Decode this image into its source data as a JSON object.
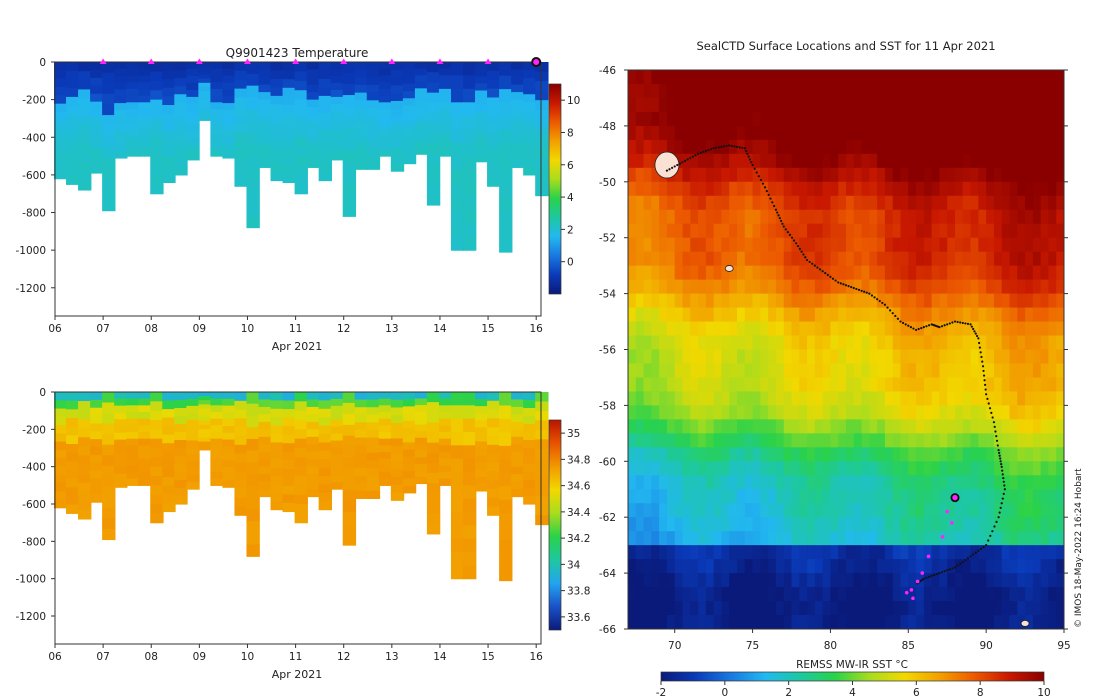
{
  "colors": {
    "temperature_scale": [
      "#0a1a7a",
      "#0a3ab8",
      "#1a78e0",
      "#22b8f0",
      "#1ec8a0",
      "#2ad24a",
      "#a8dc1e",
      "#f2d800",
      "#f2a000",
      "#ec5a00",
      "#c81800",
      "#8a0000"
    ],
    "salinity_scale": [
      "#0a1a7a",
      "#1a52c8",
      "#22a4f0",
      "#1ec8a0",
      "#2ad24a",
      "#a8dc1e",
      "#f2d800",
      "#f29a00",
      "#e85400",
      "#b81400"
    ],
    "sst_scale": [
      "#0a1a7a",
      "#0a3ab8",
      "#1a78e0",
      "#22b8f0",
      "#1ec8a0",
      "#2ad24a",
      "#a8dc1e",
      "#f2d800",
      "#f2a000",
      "#ec5a00",
      "#c81800",
      "#8a0000"
    ],
    "marker": "#ff22ff",
    "track": "#111111"
  },
  "chart_data": [
    {
      "type": "heatmap",
      "id": "temperature",
      "title": "Q9901423  Temperature",
      "xlabel": "Apr 2021",
      "xlim": [
        6,
        16.1
      ],
      "x_ticks": [
        "06",
        "07",
        "08",
        "09",
        "10",
        "11",
        "12",
        "13",
        "14",
        "15",
        "16"
      ],
      "ylim": [
        -1350,
        0
      ],
      "y_ticks": [
        "0",
        "-200",
        "-400",
        "-600",
        "-800",
        "-1000",
        "-1200"
      ],
      "colorbar": {
        "range": [
          -2,
          11
        ],
        "ticks": [
          "0",
          "2",
          "4",
          "6",
          "8",
          "10"
        ]
      },
      "profile_days": [
        6.0,
        6.25,
        6.5,
        6.75,
        7.0,
        7.25,
        7.5,
        7.75,
        8.0,
        8.25,
        8.5,
        8.75,
        9.0,
        9.25,
        9.5,
        9.75,
        10.0,
        10.25,
        10.5,
        10.75,
        11.0,
        11.25,
        11.5,
        11.75,
        12.0,
        12.25,
        12.5,
        12.75,
        13.0,
        13.25,
        13.5,
        13.75,
        14.0,
        14.25,
        14.5,
        14.75,
        15.0,
        15.25,
        15.5,
        15.75,
        16.0
      ],
      "profile_max_depth": [
        620,
        650,
        680,
        590,
        790,
        510,
        500,
        500,
        700,
        640,
        600,
        520,
        310,
        500,
        510,
        660,
        880,
        560,
        630,
        640,
        700,
        560,
        630,
        520,
        820,
        570,
        570,
        500,
        580,
        540,
        490,
        760,
        500,
        1000,
        1000,
        530,
        660,
        1010,
        560,
        600,
        710
      ],
      "cold_layer_depth": [
        200,
        180,
        160,
        190,
        260,
        220,
        200,
        210,
        180,
        230,
        180,
        200,
        120,
        200,
        230,
        140,
        140,
        180,
        170,
        160,
        150,
        200,
        180,
        170,
        190,
        170,
        200,
        220,
        210,
        200,
        150,
        160,
        140,
        200,
        180,
        160,
        170,
        150,
        160,
        170,
        180
      ],
      "marker_days": [
        7,
        8,
        9,
        10,
        11,
        12,
        13,
        14,
        15,
        16
      ],
      "marker_depth": 0
    },
    {
      "type": "heatmap",
      "id": "salinity",
      "title": "",
      "xlabel": "Apr 2021",
      "xlim": [
        6,
        16.1
      ],
      "x_ticks": [
        "06",
        "07",
        "08",
        "09",
        "10",
        "11",
        "12",
        "13",
        "14",
        "15",
        "16"
      ],
      "ylim": [
        -1350,
        0
      ],
      "y_ticks": [
        "0",
        "-200",
        "-400",
        "-600",
        "-800",
        "-1000",
        "-1200"
      ],
      "colorbar": {
        "range": [
          33.5,
          35.1
        ],
        "ticks": [
          "33.6",
          "33.8",
          "34",
          "34.2",
          "34.4",
          "34.6",
          "34.8",
          "35"
        ]
      },
      "profile_days": [
        6.0,
        6.25,
        6.5,
        6.75,
        7.0,
        7.25,
        7.5,
        7.75,
        8.0,
        8.25,
        8.5,
        8.75,
        9.0,
        9.25,
        9.5,
        9.75,
        10.0,
        10.25,
        10.5,
        10.75,
        11.0,
        11.25,
        11.5,
        11.75,
        12.0,
        12.25,
        12.5,
        12.75,
        13.0,
        13.25,
        13.5,
        13.75,
        14.0,
        14.25,
        14.5,
        14.75,
        15.0,
        15.25,
        15.5,
        15.75,
        16.0
      ],
      "profile_max_depth": [
        620,
        650,
        680,
        590,
        790,
        510,
        500,
        500,
        700,
        640,
        600,
        520,
        310,
        500,
        510,
        660,
        880,
        560,
        630,
        640,
        700,
        560,
        630,
        520,
        820,
        570,
        570,
        500,
        580,
        540,
        490,
        760,
        500,
        1000,
        1000,
        530,
        660,
        1010,
        560,
        600,
        710
      ]
    },
    {
      "type": "heatmap",
      "id": "sst_map",
      "title": "SealCTD Surface Locations and SST for 11 Apr 2021",
      "xlabel": "",
      "xlim": [
        67,
        95
      ],
      "x_ticks": [
        "70",
        "75",
        "80",
        "85",
        "90",
        "95"
      ],
      "ylim": [
        -66,
        -46
      ],
      "y_ticks": [
        "-46",
        "-48",
        "-50",
        "-52",
        "-54",
        "-56",
        "-58",
        "-60",
        "-62",
        "-64",
        "-66"
      ],
      "colorbar": {
        "label": "REMSS MW-IR SST °C",
        "range": [
          -2,
          10
        ],
        "ticks": [
          "-2",
          "0",
          "2",
          "4",
          "6",
          "8",
          "10"
        ]
      },
      "track_lon": [
        69.5,
        70.5,
        71.5,
        72.5,
        73.5,
        74.5,
        75.0,
        75.8,
        76.5,
        77.0,
        77.8,
        78.5,
        79.5,
        80.5,
        81.5,
        82.5,
        83.5,
        84.5,
        85.5,
        86.5,
        87.0,
        88.0,
        89.0,
        89.5,
        89.8,
        90.0,
        90.5,
        90.8,
        91.0,
        91.2,
        90.8,
        90.0,
        89.0,
        88.0,
        87.0,
        86.0,
        85.5
      ],
      "track_lat": [
        -49.6,
        -49.3,
        -49.0,
        -48.8,
        -48.7,
        -48.8,
        -49.4,
        -50.2,
        -51.0,
        -51.6,
        -52.2,
        -52.8,
        -53.2,
        -53.6,
        -53.8,
        -54.0,
        -54.4,
        -55.0,
        -55.3,
        -55.1,
        -55.2,
        -55.0,
        -55.1,
        -55.6,
        -56.6,
        -57.6,
        -58.6,
        -59.6,
        -60.2,
        -61.0,
        -62.0,
        -63.0,
        -63.4,
        -63.8,
        -64.0,
        -64.2,
        -64.4
      ],
      "surface_locations_lon": [
        88.0,
        87.5,
        87.8,
        87.2,
        86.3,
        85.9,
        85.6,
        85.2,
        84.9,
        85.3
      ],
      "surface_locations_lat": [
        -61.3,
        -61.8,
        -62.2,
        -62.7,
        -63.4,
        -64.0,
        -64.3,
        -64.6,
        -64.7,
        -64.9
      ],
      "current_location": [
        88.0,
        -61.3
      ],
      "land_islands": [
        [
          69.5,
          -49.4
        ],
        [
          73.5,
          -53.1
        ],
        [
          92.5,
          -65.8
        ]
      ]
    }
  ],
  "credit": "© IMOS 18-May-2022 16:24 Hobart"
}
